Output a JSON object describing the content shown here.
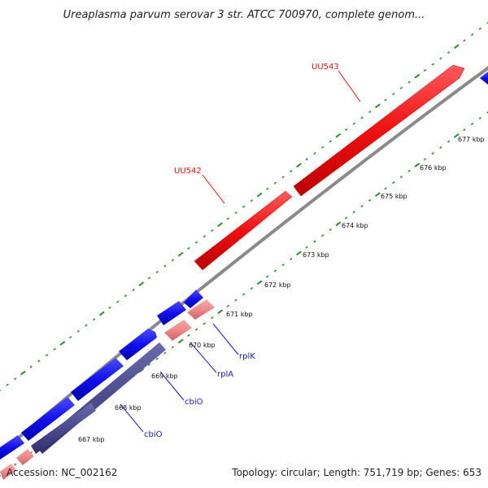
{
  "map": {
    "title": "Ureaplasma parvum serovar 3 str. ATCC 700970, complete genom...",
    "accession_text": "Accession: NC_002162",
    "summary_text": "Topology: circular; Length: 751,719 bp; Genes: 653"
  },
  "colors": {
    "backbone": "#8a8a8a",
    "forward_gene": "#ee1111",
    "reverse_gene": "#1111ee",
    "rna_gene": "#ee8888",
    "other_gene": "#4a4a8e",
    "tick": "#2e8b2e",
    "label_red": "#ee1111",
    "label_blue": "#1a1acc"
  },
  "ticks": [
    "667 kbp",
    "668 kbp",
    "669 kbp",
    "670 kbp",
    "671 kbp",
    "672 kbp",
    "673 kbp",
    "674 kbp",
    "675 kbp",
    "676 kbp",
    "677 kbp"
  ],
  "gene_labels": [
    {
      "name": "UU543",
      "color": "red"
    },
    {
      "name": "UU542",
      "color": "red"
    },
    {
      "name": "rplK",
      "color": "blue"
    },
    {
      "name": "rplA",
      "color": "blue"
    },
    {
      "name": "cbiO",
      "color": "blue"
    },
    {
      "name": "cbiO",
      "color": "blue"
    }
  ]
}
